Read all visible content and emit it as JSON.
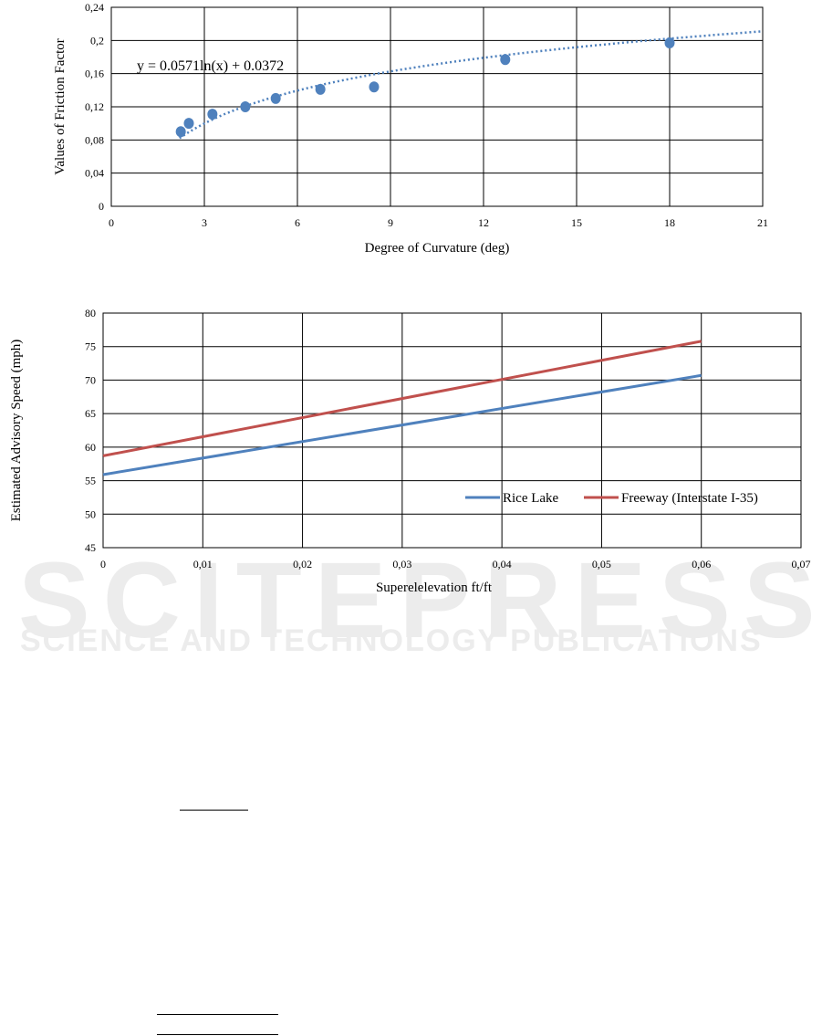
{
  "watermark": {
    "main": "SCITEPRESS",
    "sub": "SCIENCE AND TECHNOLOGY PUBLICATIONS"
  },
  "chart_data": [
    {
      "type": "scatter",
      "xlabel": "Degree of Curvature (deg)",
      "ylabel": "Values of Friction Factor",
      "xlim": [
        0,
        21
      ],
      "ylim": [
        0,
        0.24
      ],
      "xticks": [
        0,
        3,
        6,
        9,
        12,
        15,
        18,
        21
      ],
      "xtick_labels": [
        "0",
        "3",
        "6",
        "9",
        "12",
        "15",
        "18",
        "21"
      ],
      "yticks": [
        0,
        0.04,
        0.08,
        0.12,
        0.16,
        0.2,
        0.24
      ],
      "ytick_labels": [
        "0",
        "0,04",
        "0,08",
        "0,12",
        "0,16",
        "0,2",
        "0,24"
      ],
      "grid": true,
      "color": "#4f81bd",
      "points": [
        [
          2.24,
          0.09
        ],
        [
          2.5,
          0.1
        ],
        [
          3.26,
          0.111
        ],
        [
          4.32,
          0.12
        ],
        [
          5.3,
          0.13
        ],
        [
          6.74,
          0.141
        ],
        [
          8.47,
          0.144
        ],
        [
          12.7,
          0.177
        ],
        [
          18.0,
          0.197
        ]
      ],
      "trendline": {
        "type": "log",
        "a": 0.0571,
        "b": 0.0372,
        "x_start": 2.2,
        "x_end": 21
      },
      "annotation": "y = 0.0571ln(x) + 0.0372"
    },
    {
      "type": "line",
      "xlabel": "Superelelevation  ft/ft",
      "ylabel": "Estimated  Advisory Speed (mph)",
      "xlim": [
        0,
        0.07
      ],
      "ylim": [
        45,
        80
      ],
      "xticks": [
        0,
        0.01,
        0.02,
        0.03,
        0.04,
        0.05,
        0.06,
        0.07
      ],
      "xtick_labels": [
        "0",
        "0,01",
        "0,02",
        "0,03",
        "0,04",
        "0,05",
        "0,06",
        "0,07"
      ],
      "yticks": [
        45,
        50,
        55,
        60,
        65,
        70,
        75,
        80
      ],
      "ytick_labels": [
        "45",
        "50",
        "55",
        "60",
        "65",
        "70",
        "75",
        "80"
      ],
      "grid": true,
      "legend": "bottom-right",
      "series": [
        {
          "name": "Rice Lake",
          "color": "#4f81bd",
          "x": [
            0,
            0.06
          ],
          "y": [
            55.9,
            70.7
          ]
        },
        {
          "name": "Freeway (Interstate I-35)",
          "color": "#c0504d",
          "x": [
            0,
            0.06
          ],
          "y": [
            58.7,
            75.8
          ]
        }
      ]
    }
  ]
}
